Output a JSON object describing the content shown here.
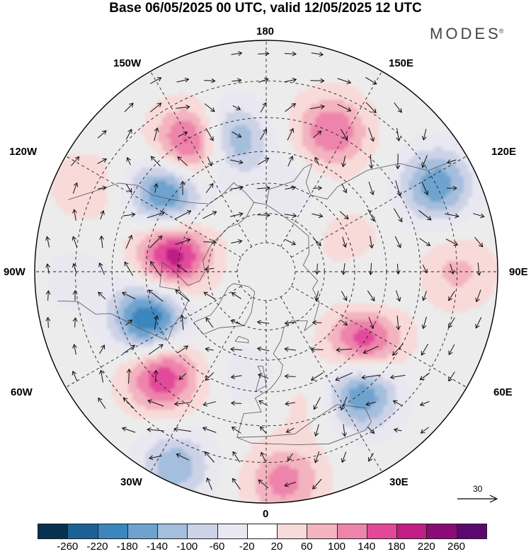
{
  "title": "Base 06/05/2025 00 UTC, valid 12/05/2025 12 UTC",
  "brand": {
    "name": "MODES",
    "mark": "®"
  },
  "longitude_labels": {
    "top": "180",
    "top_left": "150W",
    "top_right": "150E",
    "upper_left": "120W",
    "upper_right": "120E",
    "left": "90W",
    "right": "90E",
    "lower_left": "60W",
    "lower_right": "60E",
    "bottom_left": "30W",
    "bottom_right": "30E",
    "bottom": "0"
  },
  "reference_vector": {
    "value": "30"
  },
  "colorbar": {
    "colors": [
      "#08304f",
      "#1b6196",
      "#3a86bd",
      "#6ea3cf",
      "#a4bedd",
      "#cdd3e7",
      "#e9e8f1",
      "#ffffff",
      "#f8dad9",
      "#f3b3bf",
      "#ee84ab",
      "#e2489a",
      "#c01d86",
      "#8c0a78",
      "#5c0871"
    ],
    "labels": [
      "-260",
      "-220",
      "-180",
      "-140",
      "-100",
      "-60",
      "-20",
      "20",
      "60",
      "100",
      "140",
      "180",
      "220",
      "260"
    ]
  },
  "anomaly_centers": [
    {
      "lon": -150,
      "lat": 42,
      "value": 210
    },
    {
      "lon": -164,
      "lat": 45,
      "value": -170
    },
    {
      "lon": -128,
      "lat": 48,
      "value": -200
    },
    {
      "lon": -100,
      "lat": 58,
      "value": 210
    },
    {
      "lon": -68,
      "lat": 48,
      "value": -230
    },
    {
      "lon": -45,
      "lat": 42,
      "value": 180
    },
    {
      "lon": -25,
      "lat": 24,
      "value": -130
    },
    {
      "lon": 5,
      "lat": 25,
      "value": 120
    },
    {
      "lon": 38,
      "lat": 40,
      "value": -190
    },
    {
      "lon": 55,
      "lat": 50,
      "value": 180
    },
    {
      "lon": 90,
      "lat": 30,
      "value": 70
    },
    {
      "lon": 117,
      "lat": 30,
      "value": -170
    },
    {
      "lon": 155,
      "lat": 40,
      "value": 140
    },
    {
      "lon": 78,
      "lat": 55,
      "value": -40
    },
    {
      "lon": 110,
      "lat": 60,
      "value": 40
    },
    {
      "lon": -115,
      "lat": 28,
      "value": 50
    },
    {
      "lon": -88,
      "lat": 30,
      "value": -40
    },
    {
      "lon": -10,
      "lat": 55,
      "value": -40
    },
    {
      "lon": 20,
      "lat": 45,
      "value": 40
    },
    {
      "lon": 165,
      "lat": 60,
      "value": -40
    }
  ]
}
